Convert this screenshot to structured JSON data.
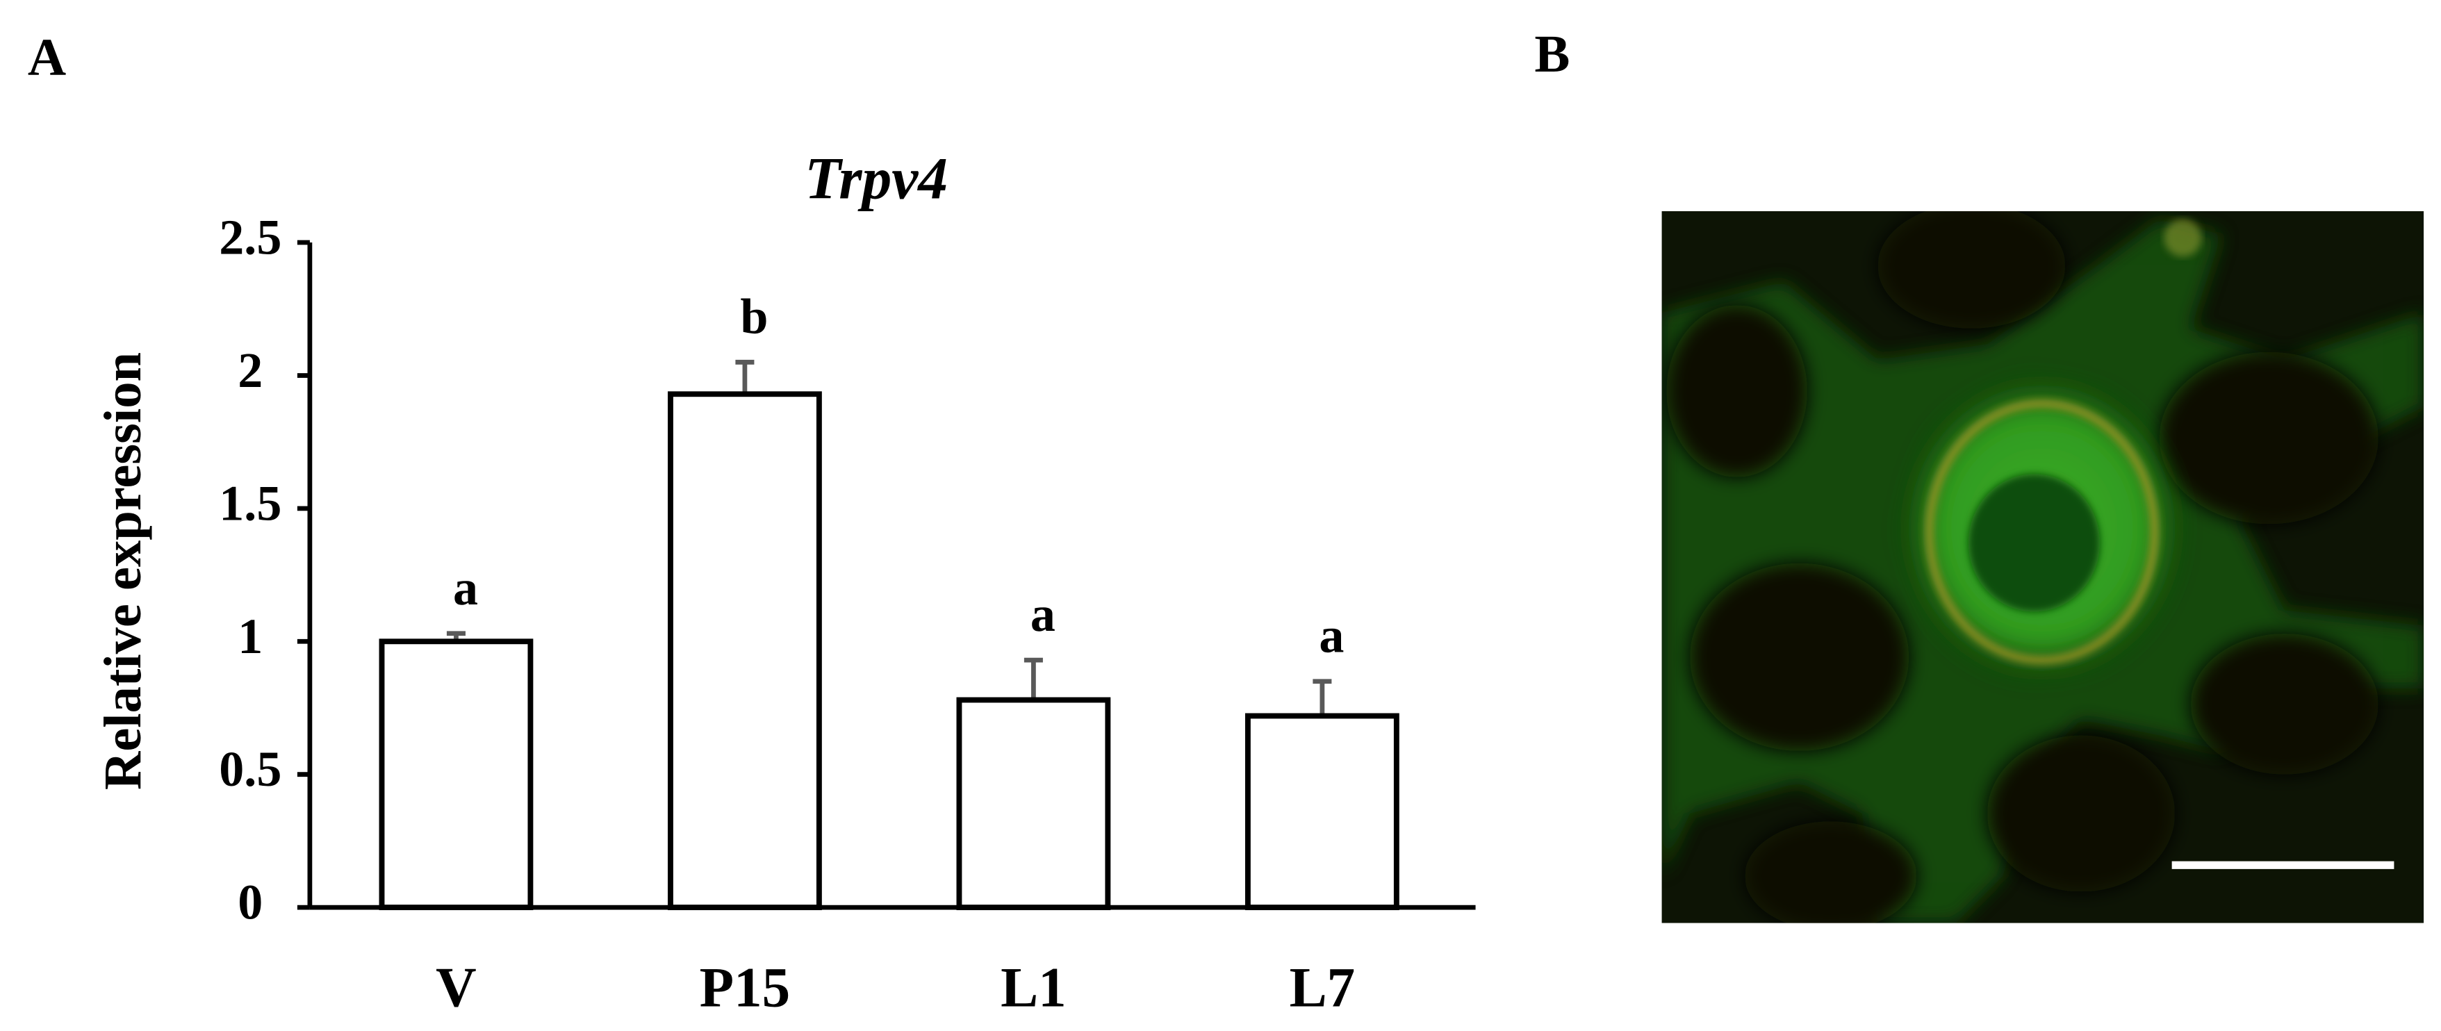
{
  "panel_labels": [
    "A",
    "B"
  ],
  "chart_data": {
    "type": "bar",
    "title": "Trpv4",
    "ylabel": "Relative expression",
    "categories": [
      "V",
      "P15",
      "L1",
      "L7"
    ],
    "values": [
      1.0,
      1.93,
      0.78,
      0.72
    ],
    "errors": [
      0.03,
      0.12,
      0.15,
      0.13
    ],
    "annotations": [
      "a",
      "b",
      "a",
      "a"
    ],
    "color": "#ffffff",
    "edge_color": "#000000",
    "error_color": "#595959",
    "ylim": [
      0,
      2.5
    ],
    "yticks": [
      0,
      0.5,
      1,
      1.5,
      2,
      2.5
    ],
    "grid": false
  }
}
